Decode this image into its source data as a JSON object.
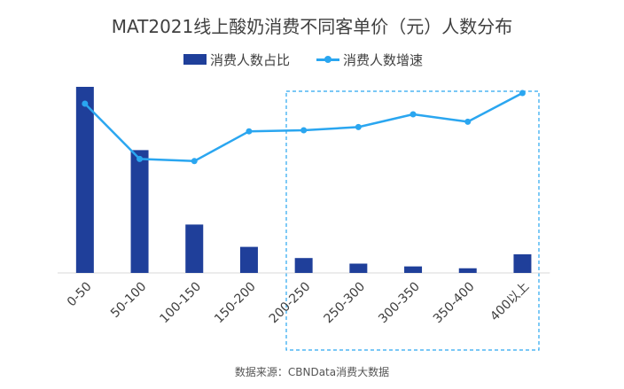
{
  "title": "MAT2021线上酸奶消费不同客单价（元）人数分布",
  "source": "数据来源：CBNData消费大数据",
  "colors": {
    "bar": "#1F3F9A",
    "line": "#2AA6F0",
    "highlight_box": "#2AA6F0",
    "axis": "#D9D9D9",
    "text": "#404040"
  },
  "chart_data": {
    "type": "bar",
    "categories": [
      "0-50",
      "50-100",
      "100-150",
      "150-200",
      "200-250",
      "250-300",
      "300-350",
      "350-400",
      "400以上"
    ],
    "series": [
      {
        "name": "消费人数占比",
        "type": "bar",
        "values": [
          100,
          66,
          26,
          14,
          8,
          5,
          3.5,
          2.5,
          10
        ]
      },
      {
        "name": "消费人数增速",
        "type": "line",
        "values": [
          65,
          39,
          38,
          52,
          52.5,
          54,
          60,
          56.5,
          70
        ]
      }
    ],
    "bar_ylim": [
      0,
      100
    ],
    "line_ylim": [
      0,
      100
    ],
    "grid": false,
    "legend_position": "top-center",
    "highlight_range": [
      "200-250",
      "400以上"
    ],
    "highlight_style": "dashed-box"
  }
}
